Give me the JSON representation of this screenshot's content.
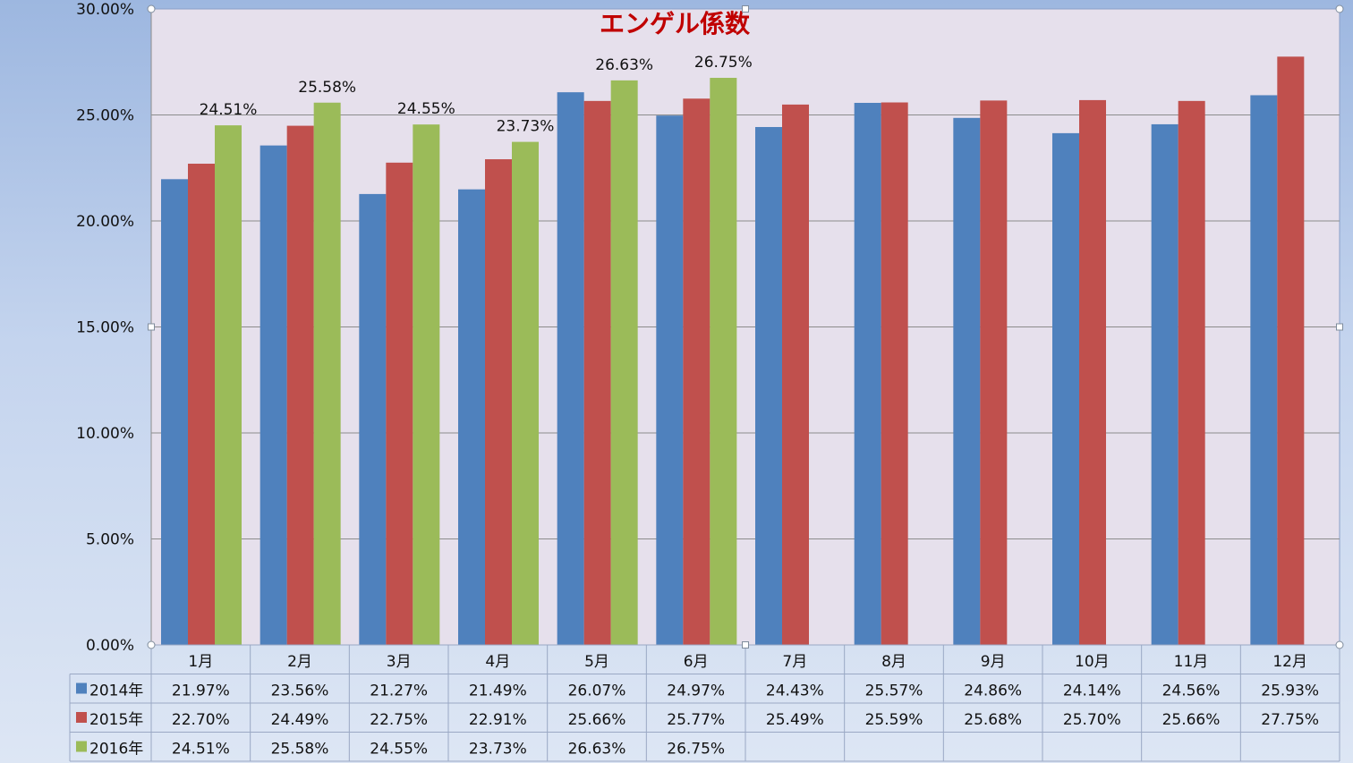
{
  "chart_data": {
    "type": "bar",
    "title": "エンゲル係数",
    "categories": [
      "1月",
      "2月",
      "3月",
      "4月",
      "5月",
      "6月",
      "7月",
      "8月",
      "9月",
      "10月",
      "11月",
      "12月"
    ],
    "series": [
      {
        "name": "2014年",
        "color": "#4f81bd",
        "values": [
          21.97,
          23.56,
          21.27,
          21.49,
          26.07,
          24.97,
          24.43,
          25.57,
          24.86,
          24.14,
          24.56,
          25.93
        ]
      },
      {
        "name": "2015年",
        "color": "#c0504d",
        "values": [
          22.7,
          24.49,
          22.75,
          22.91,
          25.66,
          25.77,
          25.49,
          25.59,
          25.68,
          25.7,
          25.66,
          27.75
        ]
      },
      {
        "name": "2016年",
        "color": "#9bbb59",
        "values": [
          24.51,
          25.58,
          24.55,
          23.73,
          26.63,
          26.75,
          null,
          null,
          null,
          null,
          null,
          null
        ]
      }
    ],
    "data_labels_series": "2016年",
    "ylim": [
      0,
      30
    ],
    "yticks": [
      0,
      5,
      10,
      15,
      20,
      25,
      30
    ],
    "ytick_format": "0.00%",
    "gridlines": true,
    "legend": "data-table",
    "data_table": true
  }
}
